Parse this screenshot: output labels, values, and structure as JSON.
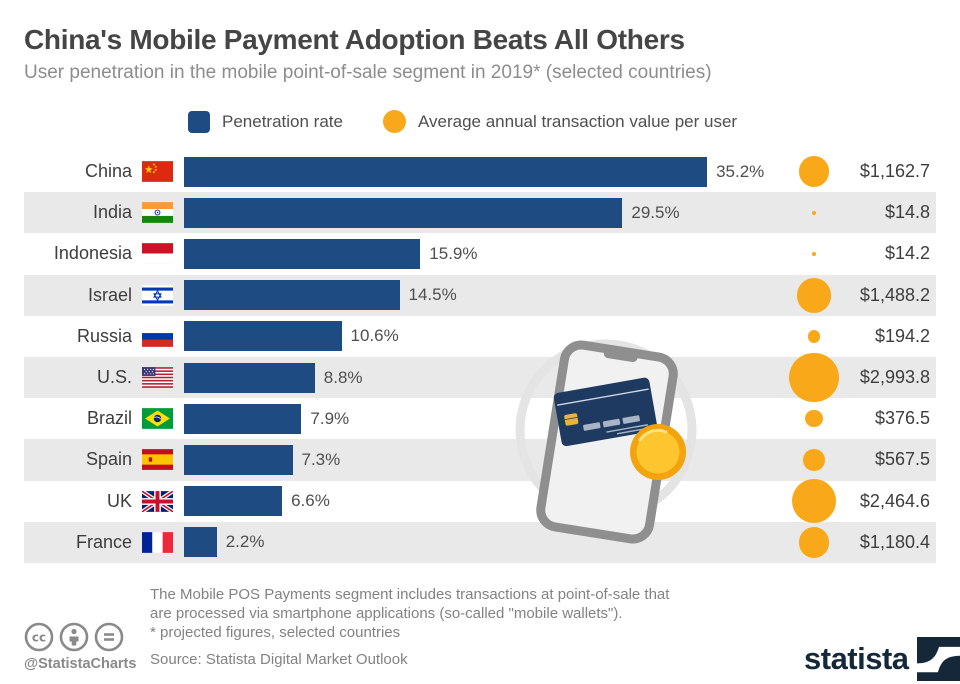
{
  "title": "China's Mobile Payment Adoption Beats All Others",
  "subtitle": "User penetration in the mobile point-of-sale segment in 2019* (selected countries)",
  "legend": {
    "penetration_label": "Penetration rate",
    "transaction_label": "Average annual transaction value per user"
  },
  "colors": {
    "bar_blue": "#1e4c82",
    "bubble_yellow": "#f9a81a",
    "stripe_gray": "#e9e9e9",
    "brand_navy": "#15283a"
  },
  "chart_data": {
    "type": "bar",
    "title": "China's Mobile Payment Adoption Beats All Others",
    "subtitle": "User penetration in the mobile point-of-sale segment in 2019* (selected countries)",
    "categories": [
      "China",
      "India",
      "Indonesia",
      "Israel",
      "Russia",
      "U.S.",
      "Brazil",
      "Spain",
      "UK",
      "France"
    ],
    "series": [
      {
        "name": "Penetration rate (%)",
        "values": [
          35.2,
          29.5,
          15.9,
          14.5,
          10.6,
          8.8,
          7.9,
          7.3,
          6.6,
          2.2
        ]
      },
      {
        "name": "Average annual transaction value per user ($)",
        "values": [
          1162.7,
          14.8,
          14.2,
          1488.2,
          194.2,
          2993.8,
          376.5,
          567.5,
          2464.6,
          1180.4
        ]
      }
    ],
    "orientation": "horizontal",
    "grid": false,
    "legend_position": "top",
    "xlim": [
      0,
      36
    ]
  },
  "rows": [
    {
      "country": "China",
      "flag": "cn",
      "pct": 35.2,
      "pct_label": "35.2%",
      "value": 1162.7,
      "value_label": "$1,162.7"
    },
    {
      "country": "India",
      "flag": "in",
      "pct": 29.5,
      "pct_label": "29.5%",
      "value": 14.8,
      "value_label": "$14.8"
    },
    {
      "country": "Indonesia",
      "flag": "id",
      "pct": 15.9,
      "pct_label": "15.9%",
      "value": 14.2,
      "value_label": "$14.2"
    },
    {
      "country": "Israel",
      "flag": "il",
      "pct": 14.5,
      "pct_label": "14.5%",
      "value": 1488.2,
      "value_label": "$1,488.2"
    },
    {
      "country": "Russia",
      "flag": "ru",
      "pct": 10.6,
      "pct_label": "10.6%",
      "value": 194.2,
      "value_label": "$194.2"
    },
    {
      "country": "U.S.",
      "flag": "us",
      "pct": 8.8,
      "pct_label": "8.8%",
      "value": 2993.8,
      "value_label": "$2,993.8"
    },
    {
      "country": "Brazil",
      "flag": "br",
      "pct": 7.9,
      "pct_label": "7.9%",
      "value": 376.5,
      "value_label": "$376.5"
    },
    {
      "country": "Spain",
      "flag": "es",
      "pct": 7.3,
      "pct_label": "7.3%",
      "value": 567.5,
      "value_label": "$567.5"
    },
    {
      "country": "UK",
      "flag": "uk",
      "pct": 6.6,
      "pct_label": "6.6%",
      "value": 2464.6,
      "value_label": "$2,464.6"
    },
    {
      "country": "France",
      "flag": "fr",
      "pct": 2.2,
      "pct_label": "2.2%",
      "value": 1180.4,
      "value_label": "$1,180.4"
    }
  ],
  "footnote": {
    "line1": "The Mobile POS Payments segment includes transactions at point-of-sale that",
    "line2": "are processed via smartphone applications (so-called \"mobile wallets\").",
    "line3": "* projected figures, selected countries"
  },
  "source": "Source: Statista Digital Market Outlook",
  "credit": "@StatistaCharts",
  "brand": "statista"
}
